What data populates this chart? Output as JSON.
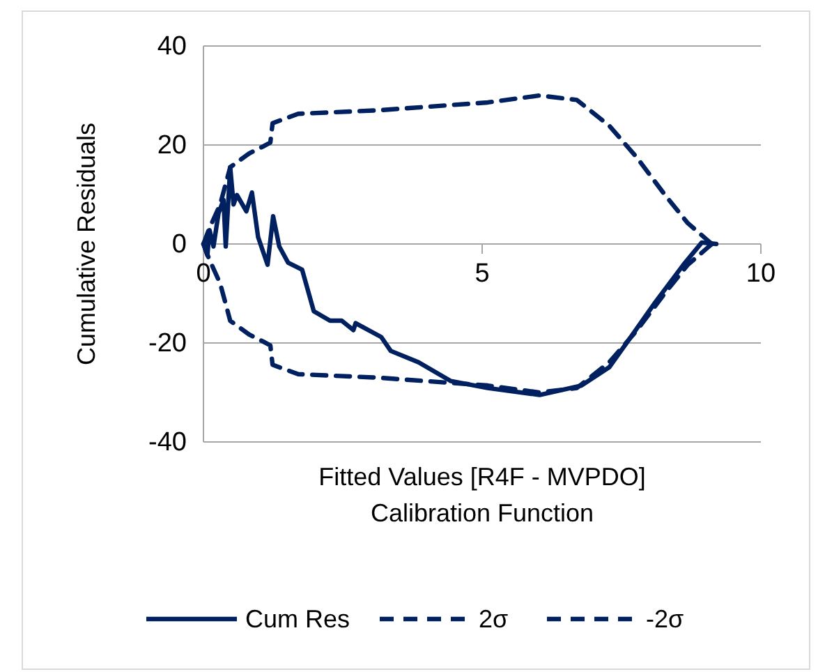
{
  "chart_data": {
    "type": "line",
    "xlabel": "Fitted Values [R4F - MVPDO]\nCalibration Function",
    "ylabel": "Cumulative Residuals",
    "xlim": [
      0,
      10
    ],
    "xticks": [
      0,
      5,
      10
    ],
    "ylim": [
      -40,
      40
    ],
    "yticks": [
      -40,
      -20,
      0,
      20,
      40
    ],
    "grid": "y",
    "legend": "bottom",
    "marker": "none",
    "series": [
      {
        "name": "Cum Res",
        "color": "#002060",
        "line_style": "solid",
        "x": [
          0,
          0.07,
          0.11,
          0.18,
          0.27,
          0.36,
          0.4,
          0.48,
          0.54,
          0.6,
          0.77,
          0.87,
          0.98,
          1.15,
          1.25,
          1.36,
          1.52,
          1.77,
          1.98,
          2.27,
          2.48,
          2.69,
          2.73,
          3.19,
          3.36,
          3.86,
          4.44,
          5.1,
          6.03,
          6.78,
          7.28,
          7.61,
          8.11,
          8.61,
          8.94,
          9.2
        ],
        "values": [
          0,
          -2.3,
          2.8,
          -0.5,
          6.2,
          8.9,
          -0.5,
          15.5,
          8,
          9.9,
          6.6,
          10.4,
          1.4,
          -4.2,
          5.6,
          -0.5,
          -3.8,
          -5.2,
          -13.6,
          -15.5,
          -15.5,
          -17.4,
          -16,
          -18.8,
          -21.6,
          -23.9,
          -27.7,
          -29.1,
          -30.5,
          -28.6,
          -24.9,
          -19.7,
          -11.7,
          -4.2,
          0.3,
          0
        ]
      },
      {
        "name": "2σ",
        "color": "#002060",
        "line_style": "dashed",
        "x": [
          0,
          0.1,
          0.3,
          0.48,
          0.82,
          1.07,
          1.2,
          1.24,
          1.7,
          3.12,
          5.1,
          6.03,
          6.7,
          7.28,
          7.78,
          8.28,
          8.69,
          9.12
        ],
        "values": [
          0,
          3,
          8,
          15.5,
          18.3,
          19.7,
          20.5,
          24.4,
          26.3,
          27,
          28.6,
          30,
          29.1,
          23.9,
          17.4,
          9.9,
          4.2,
          0
        ]
      },
      {
        "name": "-2σ",
        "color": "#002060",
        "line_style": "dashed",
        "x": [
          0,
          0.1,
          0.3,
          0.48,
          0.82,
          1.07,
          1.2,
          1.24,
          1.7,
          3.12,
          5.1,
          6.03,
          6.7,
          7.28,
          7.78,
          8.28,
          8.69,
          9.12
        ],
        "values": [
          0,
          -3,
          -8,
          -15.5,
          -18.3,
          -19.7,
          -20.5,
          -24.4,
          -26.3,
          -27,
          -28.6,
          -30,
          -29.1,
          -23.9,
          -17.4,
          -9.9,
          -4.2,
          0
        ]
      }
    ]
  }
}
